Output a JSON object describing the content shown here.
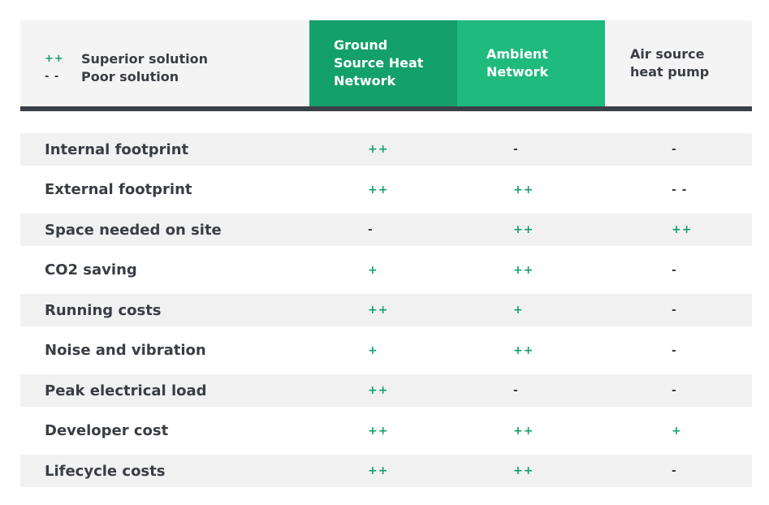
{
  "legend": [
    {
      "symbol": "++",
      "label": "Superior solution",
      "kind": "pos"
    },
    {
      "symbol": "- -",
      "label": "Poor solution",
      "kind": "neg"
    }
  ],
  "columns": [
    {
      "title": "Ground Source Heat Network",
      "lines": [
        "Ground",
        "Source Heat",
        "Network"
      ],
      "color": "#14a06a"
    },
    {
      "title": "Ambient Network",
      "lines": [
        "Ambient",
        "Network"
      ],
      "color": "#1fba7e"
    },
    {
      "title": "Air source heat pump",
      "lines": [
        "Air source",
        "heat pump"
      ],
      "color": "#f4f4f5"
    }
  ],
  "rows": [
    {
      "label": "Internal footprint",
      "values": [
        "++",
        "-",
        "-"
      ]
    },
    {
      "label": "External footprint",
      "values": [
        "++",
        "++",
        "- -"
      ]
    },
    {
      "label": "Space needed on site",
      "values": [
        "-",
        "++",
        "++"
      ]
    },
    {
      "label": "CO2 saving",
      "values": [
        "+",
        "++",
        "-"
      ]
    },
    {
      "label": "Running costs",
      "values": [
        "++",
        "+",
        "-"
      ]
    },
    {
      "label": "Noise and vibration",
      "values": [
        "+",
        "++",
        "-"
      ]
    },
    {
      "label": "Peak electrical load",
      "values": [
        "++",
        "-",
        "-"
      ]
    },
    {
      "label": "Developer cost",
      "values": [
        "++",
        "++",
        "+"
      ]
    },
    {
      "label": "Lifecycle costs",
      "values": [
        "++",
        "++",
        "-"
      ]
    }
  ],
  "colors": {
    "positive": "#14a06a",
    "neutral": "#3a3d44",
    "divider": "#3b3f48"
  }
}
